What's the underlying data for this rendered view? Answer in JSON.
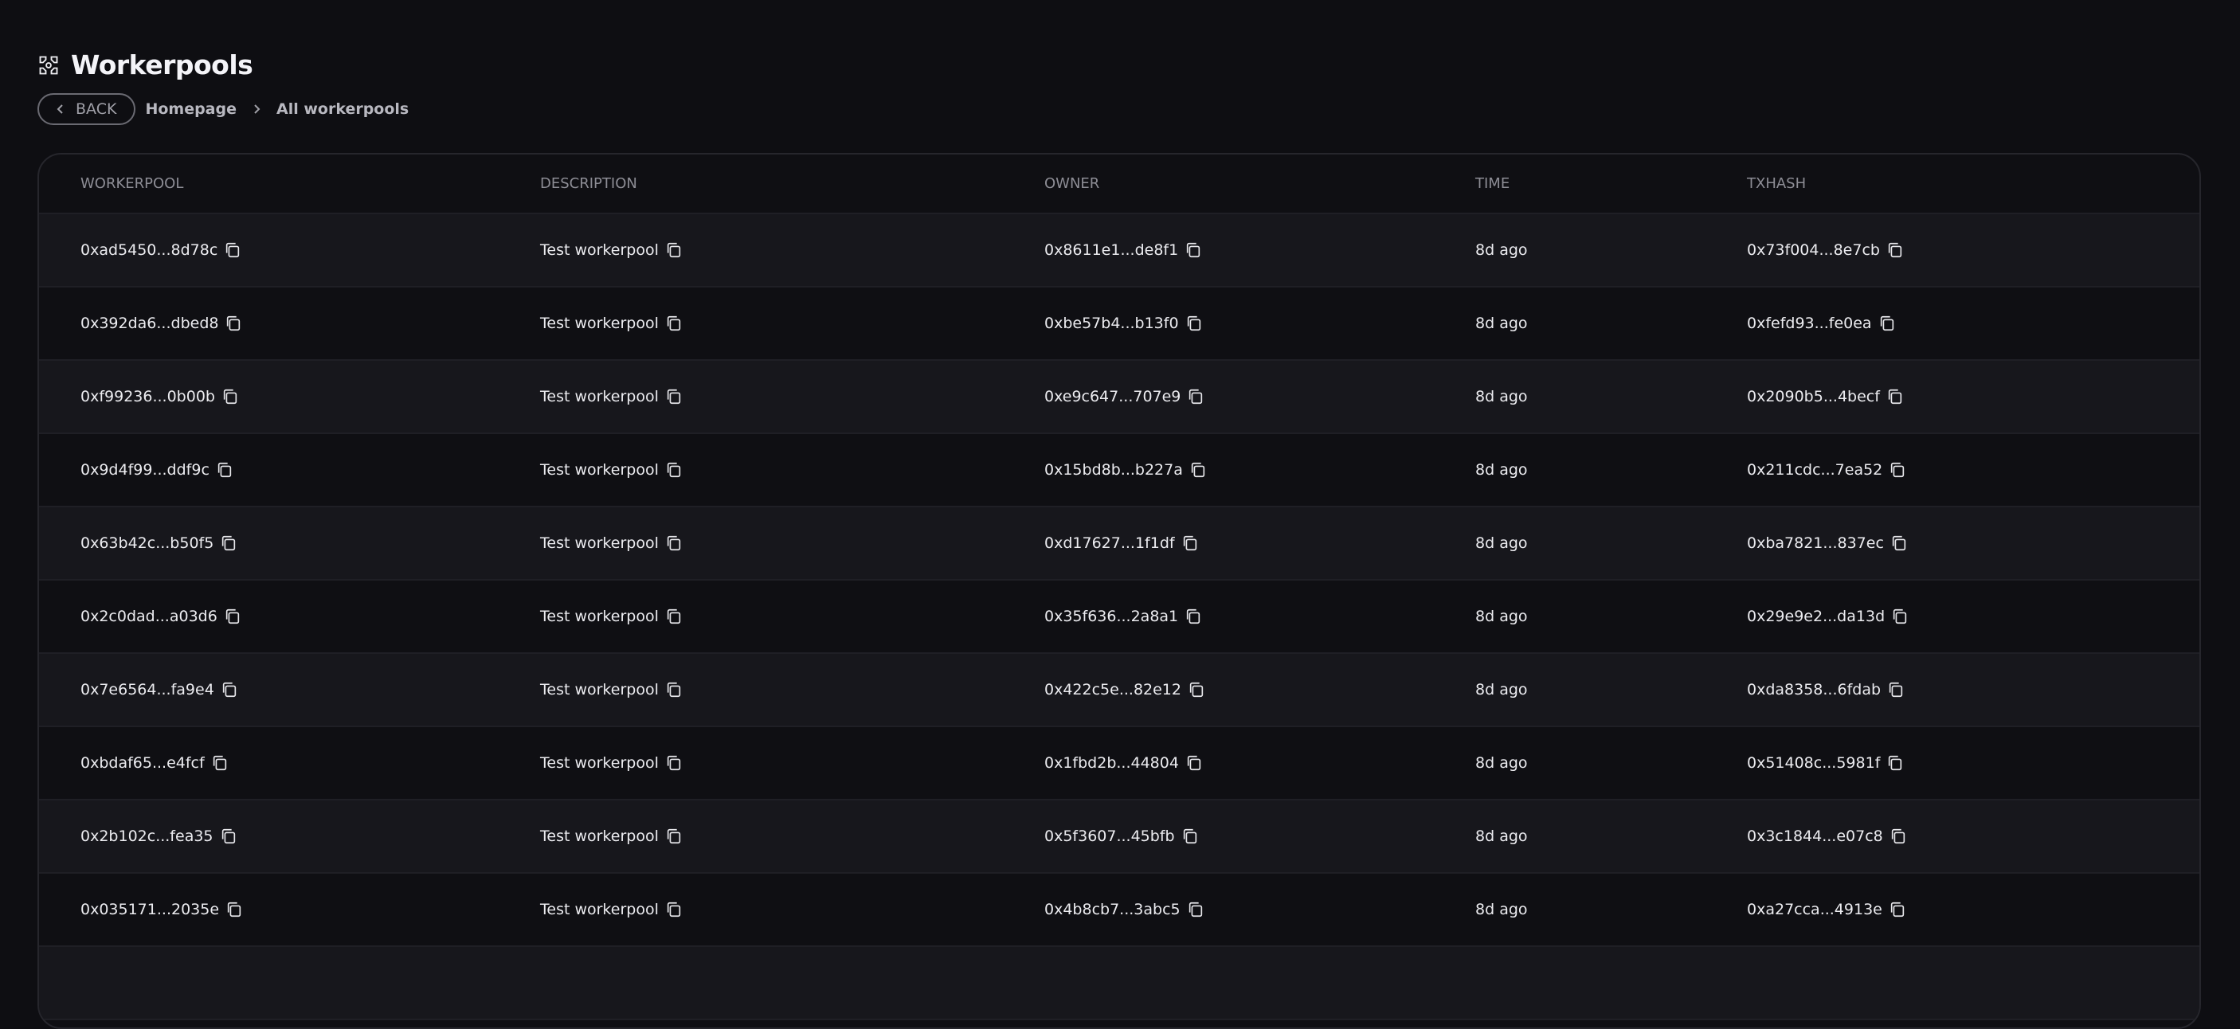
{
  "page": {
    "title": "Workerpools",
    "title_icon": "workerpool-icon"
  },
  "breadcrumb": {
    "back_label": "BACK",
    "items": [
      "Homepage",
      "All workerpools"
    ]
  },
  "table": {
    "columns": [
      "WORKERPOOL",
      "DESCRIPTION",
      "OWNER",
      "TIME",
      "TXHASH"
    ],
    "rows": [
      {
        "workerpool": "0xad5450...8d78c",
        "description": "Test workerpool",
        "owner": "0x8611e1...de8f1",
        "time": "8d ago",
        "txhash": "0x73f004...8e7cb"
      },
      {
        "workerpool": "0x392da6...dbed8",
        "description": "Test workerpool",
        "owner": "0xbe57b4...b13f0",
        "time": "8d ago",
        "txhash": "0xfefd93...fe0ea"
      },
      {
        "workerpool": "0xf99236...0b00b",
        "description": "Test workerpool",
        "owner": "0xe9c647...707e9",
        "time": "8d ago",
        "txhash": "0x2090b5...4becf"
      },
      {
        "workerpool": "0x9d4f99...ddf9c",
        "description": "Test workerpool",
        "owner": "0x15bd8b...b227a",
        "time": "8d ago",
        "txhash": "0x211cdc...7ea52"
      },
      {
        "workerpool": "0x63b42c...b50f5",
        "description": "Test workerpool",
        "owner": "0xd17627...1f1df",
        "time": "8d ago",
        "txhash": "0xba7821...837ec"
      },
      {
        "workerpool": "0x2c0dad...a03d6",
        "description": "Test workerpool",
        "owner": "0x35f636...2a8a1",
        "time": "8d ago",
        "txhash": "0x29e9e2...da13d"
      },
      {
        "workerpool": "0x7e6564...fa9e4",
        "description": "Test workerpool",
        "owner": "0x422c5e...82e12",
        "time": "8d ago",
        "txhash": "0xda8358...6fdab"
      },
      {
        "workerpool": "0xbdaf65...e4fcf",
        "description": "Test workerpool",
        "owner": "0x1fbd2b...44804",
        "time": "8d ago",
        "txhash": "0x51408c...5981f"
      },
      {
        "workerpool": "0x2b102c...fea35",
        "description": "Test workerpool",
        "owner": "0x5f3607...45bfb",
        "time": "8d ago",
        "txhash": "0x3c1844...e07c8"
      },
      {
        "workerpool": "0x035171...2035e",
        "description": "Test workerpool",
        "owner": "0x4b8cb7...3abc5",
        "time": "8d ago",
        "txhash": "0xa27cca...4913e"
      }
    ]
  }
}
